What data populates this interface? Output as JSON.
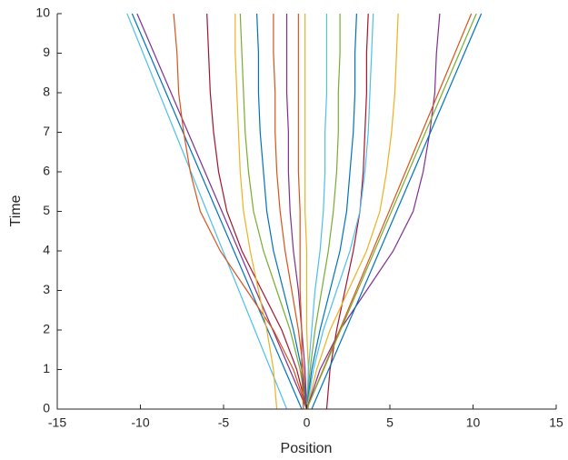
{
  "chart_data": {
    "type": "line",
    "xlabel": "Position",
    "ylabel": "Time",
    "xlim": [
      -15,
      15
    ],
    "xticks": [
      -15,
      -10,
      -5,
      0,
      5,
      10,
      15
    ],
    "ylim": [
      0,
      10
    ],
    "yticks": [
      0,
      1,
      2,
      3,
      4,
      5,
      6,
      7,
      8,
      9,
      10
    ],
    "series": [
      {
        "color": "#4dbeee",
        "x": [
          -1.2,
          -2.16,
          -3.12,
          -4.08,
          -5.04,
          -6,
          -6.96,
          -7.92,
          -8.88,
          -9.84,
          -10.8
        ],
        "values": [
          0,
          1,
          2,
          3,
          4,
          5,
          6,
          7,
          8,
          9,
          10
        ]
      },
      {
        "color": "#0072bd",
        "x": [
          -0.3,
          -1.32,
          -2.34,
          -3.36,
          -4.38,
          -5.4,
          -6.42,
          -7.44,
          -8.46,
          -9.48,
          -10.5
        ],
        "values": [
          0,
          1,
          2,
          3,
          4,
          5,
          6,
          7,
          8,
          9,
          10
        ]
      },
      {
        "color": "#7e2f8e",
        "x": [
          0,
          -1.02,
          -2.04,
          -3.06,
          -4.08,
          -5.1,
          -6.12,
          -7.14,
          -8.16,
          -9.18,
          -10.2
        ],
        "values": [
          0,
          1,
          2,
          3,
          4,
          5,
          6,
          7,
          8,
          9,
          10
        ]
      },
      {
        "color": "#d95319",
        "x": [
          0,
          -0.8,
          -2,
          -3.6,
          -5.2,
          -6.4,
          -7,
          -7.4,
          -7.7,
          -7.8,
          -8
        ],
        "values": [
          0,
          1,
          2,
          3,
          4,
          5,
          6,
          7,
          8,
          9,
          10
        ]
      },
      {
        "color": "#a2142f",
        "x": [
          0,
          -0.6,
          -1.5,
          -2.7,
          -3.9,
          -4.8,
          -5.3,
          -5.6,
          -5.8,
          -5.9,
          -6
        ],
        "values": [
          0,
          1,
          2,
          3,
          4,
          5,
          6,
          7,
          8,
          9,
          10
        ]
      },
      {
        "color": "#edb120",
        "x": [
          -1.8,
          -2,
          -2.4,
          -2.9,
          -3.4,
          -3.8,
          -4,
          -4.1,
          -4.2,
          -4.3,
          -4.3
        ],
        "values": [
          0,
          1,
          2,
          3,
          4,
          5,
          6,
          7,
          8,
          9,
          10
        ]
      },
      {
        "color": "#77ac30",
        "x": [
          0,
          -0.4,
          -1,
          -1.8,
          -2.6,
          -3.2,
          -3.5,
          -3.7,
          -3.8,
          -3.9,
          -4
        ],
        "values": [
          0,
          1,
          2,
          3,
          4,
          5,
          6,
          7,
          8,
          9,
          10
        ]
      },
      {
        "color": "#0072bd",
        "x": [
          0,
          -0.3,
          -0.8,
          -1.4,
          -2,
          -2.4,
          -2.6,
          -2.8,
          -2.9,
          -2.9,
          -3
        ],
        "values": [
          0,
          1,
          2,
          3,
          4,
          5,
          6,
          7,
          8,
          9,
          10
        ]
      },
      {
        "color": "#d95319",
        "x": [
          0,
          -0.2,
          -0.5,
          -0.9,
          -1.3,
          -1.6,
          -1.8,
          -1.9,
          -1.9,
          -2,
          -2
        ],
        "values": [
          0,
          1,
          2,
          3,
          4,
          5,
          6,
          7,
          8,
          9,
          10
        ]
      },
      {
        "color": "#7e2f8e",
        "x": [
          0,
          -0.1,
          -0.3,
          -0.5,
          -0.8,
          -1,
          -1.1,
          -1.1,
          -1.2,
          -1.2,
          -1.2
        ],
        "values": [
          0,
          1,
          2,
          3,
          4,
          5,
          6,
          7,
          8,
          9,
          10
        ]
      },
      {
        "color": "#d95319",
        "x": [
          -0.2,
          -0.3,
          -0.3,
          -0.4,
          -0.4,
          -0.4,
          -0.5,
          -0.5,
          -0.5,
          -0.5,
          -0.5
        ],
        "values": [
          0,
          1,
          2,
          3,
          4,
          5,
          6,
          7,
          8,
          9,
          10
        ]
      },
      {
        "color": "#edb120",
        "x": [
          0.1,
          0.1,
          0,
          0,
          0,
          -0.1,
          -0.1,
          -0.1,
          -0.1,
          -0.1,
          -0.1
        ],
        "values": [
          0,
          1,
          2,
          3,
          4,
          5,
          6,
          7,
          8,
          9,
          10
        ]
      },
      {
        "color": "#4dbeee",
        "x": [
          0,
          0.1,
          0.3,
          0.5,
          0.8,
          1,
          1.1,
          1.1,
          1.2,
          1.2,
          1.2
        ],
        "values": [
          0,
          1,
          2,
          3,
          4,
          5,
          6,
          7,
          8,
          9,
          10
        ]
      },
      {
        "color": "#77ac30",
        "x": [
          0,
          0.2,
          0.5,
          0.9,
          1.3,
          1.6,
          1.8,
          1.9,
          1.9,
          2,
          2
        ],
        "values": [
          0,
          1,
          2,
          3,
          4,
          5,
          6,
          7,
          8,
          9,
          10
        ]
      },
      {
        "color": "#0072bd",
        "x": [
          0,
          0.3,
          0.8,
          1.4,
          2,
          2.4,
          2.6,
          2.8,
          2.9,
          2.9,
          3
        ],
        "values": [
          0,
          1,
          2,
          3,
          4,
          5,
          6,
          7,
          8,
          9,
          10
        ]
      },
      {
        "color": "#a2142f",
        "x": [
          1.2,
          1.4,
          1.8,
          2.3,
          2.8,
          3.2,
          3.4,
          3.5,
          3.6,
          3.6,
          3.7
        ],
        "values": [
          0,
          1,
          2,
          3,
          4,
          5,
          6,
          7,
          8,
          9,
          10
        ]
      },
      {
        "color": "#4dbeee",
        "x": [
          0,
          0.4,
          1,
          1.8,
          2.6,
          3.2,
          3.5,
          3.7,
          3.8,
          3.9,
          4
        ],
        "values": [
          0,
          1,
          2,
          3,
          4,
          5,
          6,
          7,
          8,
          9,
          10
        ]
      },
      {
        "color": "#edb120",
        "x": [
          0,
          0.6,
          1.4,
          2.5,
          3.6,
          4.4,
          4.8,
          5.1,
          5.3,
          5.4,
          5.5
        ],
        "values": [
          0,
          1,
          2,
          3,
          4,
          5,
          6,
          7,
          8,
          9,
          10
        ]
      },
      {
        "color": "#7e2f8e",
        "x": [
          0,
          0.8,
          2,
          3.6,
          5.2,
          6.4,
          7,
          7.4,
          7.7,
          7.8,
          8
        ],
        "values": [
          0,
          1,
          2,
          3,
          4,
          5,
          6,
          7,
          8,
          9,
          10
        ]
      },
      {
        "color": "#d95319",
        "x": [
          0,
          0.99,
          1.98,
          2.97,
          3.96,
          4.95,
          5.94,
          6.93,
          7.92,
          8.91,
          9.9
        ],
        "values": [
          0,
          1,
          2,
          3,
          4,
          5,
          6,
          7,
          8,
          9,
          10
        ]
      },
      {
        "color": "#77ac30",
        "x": [
          0,
          1.02,
          2.04,
          3.06,
          4.08,
          5.1,
          6.12,
          7.14,
          8.16,
          9.18,
          10.2
        ],
        "values": [
          0,
          1,
          2,
          3,
          4,
          5,
          6,
          7,
          8,
          9,
          10
        ]
      },
      {
        "color": "#0072bd",
        "x": [
          0.3,
          1.32,
          2.34,
          3.36,
          4.38,
          5.4,
          6.42,
          7.44,
          8.46,
          9.48,
          10.5
        ],
        "values": [
          0,
          1,
          2,
          3,
          4,
          5,
          6,
          7,
          8,
          9,
          10
        ]
      }
    ]
  }
}
